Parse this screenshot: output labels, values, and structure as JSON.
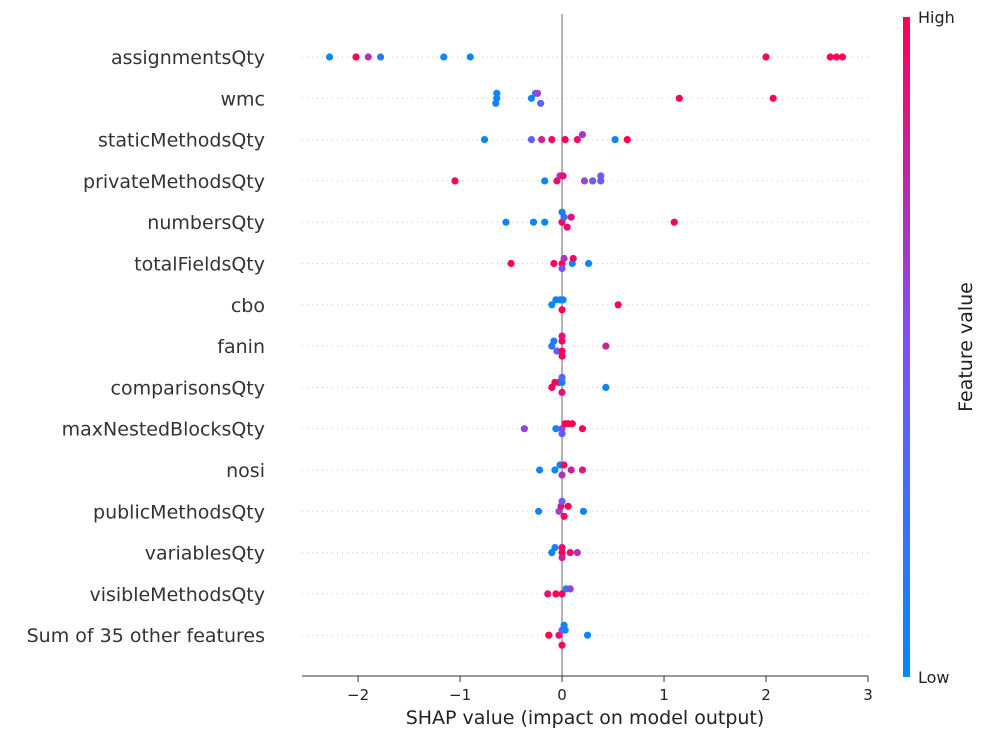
{
  "chart_data": {
    "type": "scatter",
    "xlabel": "SHAP value (impact on model output)",
    "xlim": [
      -2.55,
      3.0
    ],
    "x_ticks": [
      -2,
      -1,
      0,
      1,
      2,
      3
    ],
    "x_tick_labels": [
      "−2",
      "−1",
      "0",
      "1",
      "2",
      "3"
    ],
    "grid": false,
    "colorbar": {
      "label": "Feature value",
      "high_label": "High",
      "low_label": "Low",
      "low_color": "#008bfb",
      "mid_color": "#7c52ff",
      "high_color": "#ff0052"
    },
    "features": [
      {
        "name": "assignmentsQty",
        "points": [
          {
            "x": -2.28,
            "v": 0.0
          },
          {
            "x": -2.02,
            "v": 1.0
          },
          {
            "x": -1.9,
            "v": 0.7
          },
          {
            "x": -1.78,
            "v": 0.15
          },
          {
            "x": -1.16,
            "v": 0.05
          },
          {
            "x": -0.9,
            "v": 0.05
          },
          {
            "x": 2.0,
            "v": 1.0
          },
          {
            "x": 2.63,
            "v": 1.0
          },
          {
            "x": 2.69,
            "v": 1.0
          },
          {
            "x": 2.75,
            "v": 1.0
          }
        ]
      },
      {
        "name": "wmc",
        "points": [
          {
            "x": -0.64,
            "v": 0.05
          },
          {
            "x": -0.64,
            "v": 0.05
          },
          {
            "x": -0.65,
            "v": 0.05
          },
          {
            "x": -0.3,
            "v": 0.05
          },
          {
            "x": -0.26,
            "v": 0.3
          },
          {
            "x": -0.24,
            "v": 0.6
          },
          {
            "x": -0.21,
            "v": 0.35
          },
          {
            "x": 1.15,
            "v": 1.0
          },
          {
            "x": 2.07,
            "v": 1.0
          }
        ]
      },
      {
        "name": "staticMethodsQty",
        "points": [
          {
            "x": -0.76,
            "v": 0.05
          },
          {
            "x": -0.3,
            "v": 0.4
          },
          {
            "x": -0.2,
            "v": 0.8
          },
          {
            "x": -0.1,
            "v": 0.95
          },
          {
            "x": 0.03,
            "v": 1.0
          },
          {
            "x": 0.15,
            "v": 0.9
          },
          {
            "x": 0.2,
            "v": 0.65
          },
          {
            "x": 0.52,
            "v": 0.05
          },
          {
            "x": 0.64,
            "v": 1.0
          }
        ]
      },
      {
        "name": "privateMethodsQty",
        "points": [
          {
            "x": -1.05,
            "v": 1.0
          },
          {
            "x": -0.17,
            "v": 0.05
          },
          {
            "x": -0.05,
            "v": 0.95
          },
          {
            "x": -0.02,
            "v": 0.7
          },
          {
            "x": 0.01,
            "v": 0.9
          },
          {
            "x": 0.22,
            "v": 0.6
          },
          {
            "x": 0.3,
            "v": 0.45
          },
          {
            "x": 0.38,
            "v": 0.4
          },
          {
            "x": 0.38,
            "v": 0.45
          }
        ]
      },
      {
        "name": "numbersQty",
        "points": [
          {
            "x": -0.55,
            "v": 0.05
          },
          {
            "x": -0.28,
            "v": 0.05
          },
          {
            "x": -0.17,
            "v": 0.05
          },
          {
            "x": 0.0,
            "v": 0.95
          },
          {
            "x": 0.02,
            "v": 0.3
          },
          {
            "x": 0.05,
            "v": 0.9
          },
          {
            "x": 0.09,
            "v": 0.85
          },
          {
            "x": 0.0,
            "v": 0.1
          },
          {
            "x": 1.1,
            "v": 1.0
          }
        ]
      },
      {
        "name": "totalFieldsQty",
        "points": [
          {
            "x": -0.5,
            "v": 1.0
          },
          {
            "x": -0.08,
            "v": 0.95
          },
          {
            "x": 0.0,
            "v": 1.0
          },
          {
            "x": 0.02,
            "v": 0.7
          },
          {
            "x": 0.1,
            "v": 0.05
          },
          {
            "x": 0.11,
            "v": 0.95
          },
          {
            "x": 0.26,
            "v": 0.05
          },
          {
            "x": 0.0,
            "v": 0.5
          }
        ]
      },
      {
        "name": "cbo",
        "points": [
          {
            "x": -0.1,
            "v": 0.05
          },
          {
            "x": -0.06,
            "v": 0.05
          },
          {
            "x": -0.02,
            "v": 0.05
          },
          {
            "x": 0.01,
            "v": 0.1
          },
          {
            "x": 0.0,
            "v": 1.0
          },
          {
            "x": 0.55,
            "v": 1.0
          }
        ]
      },
      {
        "name": "fanin",
        "points": [
          {
            "x": -0.1,
            "v": 0.15
          },
          {
            "x": -0.08,
            "v": 0.1
          },
          {
            "x": -0.05,
            "v": 0.4
          },
          {
            "x": 0.0,
            "v": 0.95
          },
          {
            "x": 0.0,
            "v": 1.0
          },
          {
            "x": 0.0,
            "v": 0.9
          },
          {
            "x": 0.0,
            "v": 0.95
          },
          {
            "x": 0.43,
            "v": 0.8
          }
        ]
      },
      {
        "name": "comparisonsQty",
        "points": [
          {
            "x": -0.1,
            "v": 0.95
          },
          {
            "x": -0.07,
            "v": 1.0
          },
          {
            "x": -0.03,
            "v": 0.9
          },
          {
            "x": 0.0,
            "v": 0.05
          },
          {
            "x": 0.0,
            "v": 0.9
          },
          {
            "x": 0.0,
            "v": 0.3
          },
          {
            "x": 0.43,
            "v": 0.05
          }
        ]
      },
      {
        "name": "maxNestedBlocksQty",
        "points": [
          {
            "x": -0.37,
            "v": 0.6
          },
          {
            "x": -0.06,
            "v": 0.05
          },
          {
            "x": 0.0,
            "v": 0.6
          },
          {
            "x": 0.03,
            "v": 1.0
          },
          {
            "x": 0.06,
            "v": 1.0
          },
          {
            "x": 0.1,
            "v": 1.0
          },
          {
            "x": 0.2,
            "v": 0.95
          },
          {
            "x": 0.0,
            "v": 0.4
          }
        ]
      },
      {
        "name": "nosi",
        "points": [
          {
            "x": -0.22,
            "v": 0.1
          },
          {
            "x": -0.07,
            "v": 0.05
          },
          {
            "x": -0.02,
            "v": 0.1
          },
          {
            "x": 0.02,
            "v": 0.95
          },
          {
            "x": 0.09,
            "v": 0.8
          },
          {
            "x": 0.2,
            "v": 0.85
          },
          {
            "x": 0.0,
            "v": 0.7
          }
        ]
      },
      {
        "name": "publicMethodsQty",
        "points": [
          {
            "x": -0.23,
            "v": 0.1
          },
          {
            "x": -0.03,
            "v": 0.6
          },
          {
            "x": -0.01,
            "v": 0.9
          },
          {
            "x": 0.02,
            "v": 1.0
          },
          {
            "x": 0.06,
            "v": 1.0
          },
          {
            "x": 0.21,
            "v": 0.05
          },
          {
            "x": 0.0,
            "v": 0.45
          }
        ]
      },
      {
        "name": "variablesQty",
        "points": [
          {
            "x": -0.1,
            "v": 0.05
          },
          {
            "x": -0.07,
            "v": 0.1
          },
          {
            "x": 0.0,
            "v": 1.0
          },
          {
            "x": 0.0,
            "v": 0.95
          },
          {
            "x": 0.08,
            "v": 0.9
          },
          {
            "x": 0.15,
            "v": 0.7
          },
          {
            "x": 0.0,
            "v": 0.8
          }
        ]
      },
      {
        "name": "visibleMethodsQty",
        "points": [
          {
            "x": -0.14,
            "v": 0.9
          },
          {
            "x": -0.06,
            "v": 1.0
          },
          {
            "x": 0.0,
            "v": 0.95
          },
          {
            "x": 0.04,
            "v": 0.1
          },
          {
            "x": 0.08,
            "v": 0.6
          }
        ]
      },
      {
        "name": "Sum of 35 other features",
        "points": [
          {
            "x": -0.13,
            "v": 1.0
          },
          {
            "x": -0.03,
            "v": 0.9
          },
          {
            "x": 0.0,
            "v": 0.5
          },
          {
            "x": 0.03,
            "v": 0.05
          },
          {
            "x": 0.02,
            "v": 0.05
          },
          {
            "x": 0.25,
            "v": 0.05
          },
          {
            "x": 0.0,
            "v": 0.95
          }
        ]
      }
    ]
  }
}
